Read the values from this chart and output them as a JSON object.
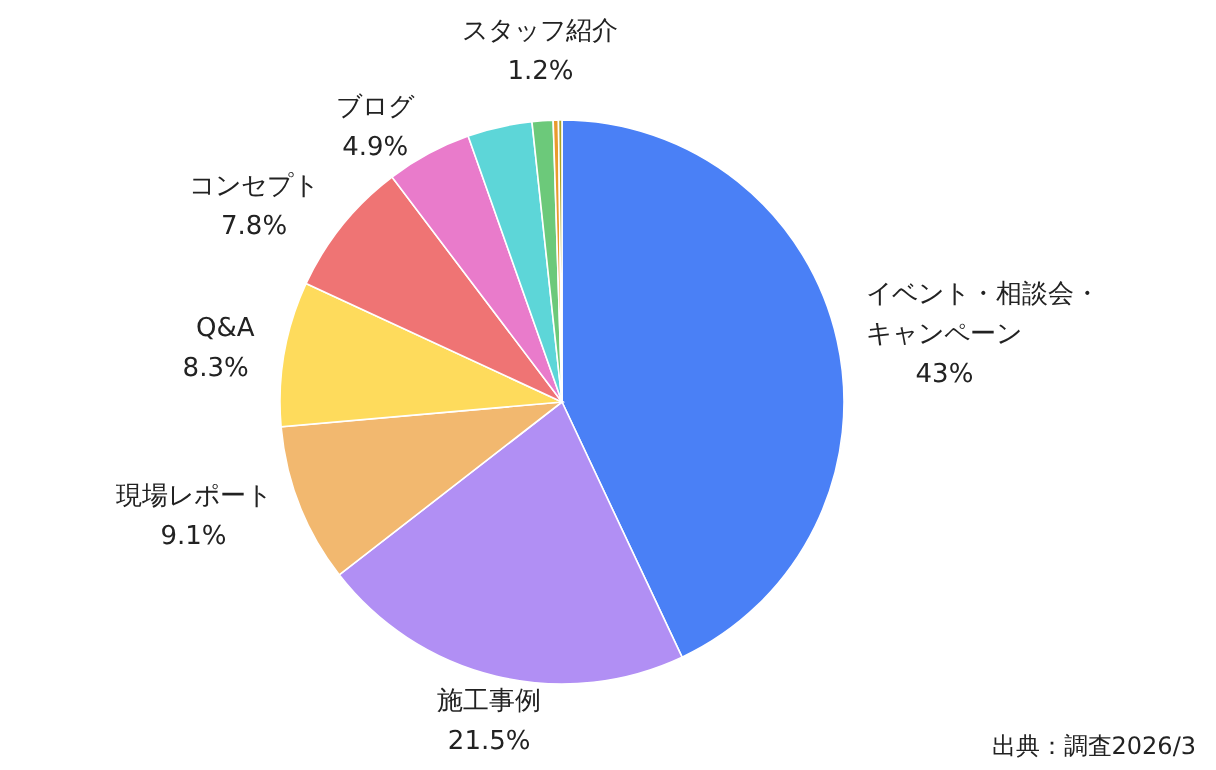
{
  "chart_data": {
    "type": "pie",
    "categories": [
      "イベント・相談会・キャンペーン",
      "施工事例",
      "現場レポート",
      "Q&A",
      "コンセプト",
      "ブログ",
      null,
      "スタッフ紹介",
      null,
      null
    ],
    "values": [
      43,
      21.5,
      9.1,
      8.3,
      7.8,
      4.9,
      3.7,
      1.2,
      0.3,
      0.2
    ],
    "value_labels": [
      "43%",
      "21.5%",
      "9.1%",
      "8.3%",
      "7.8%",
      "4.9%",
      null,
      "1.2%",
      null,
      null
    ],
    "colors": [
      "#4a80f6",
      "#b18ff4",
      "#f2b86f",
      "#fedb5c",
      "#ef7474",
      "#e97bcb",
      "#5dd6d8",
      "#6cc97a",
      "#e89b2e",
      "#a8a325"
    ],
    "annotations": [
      "出典：調査2026/3"
    ]
  }
}
